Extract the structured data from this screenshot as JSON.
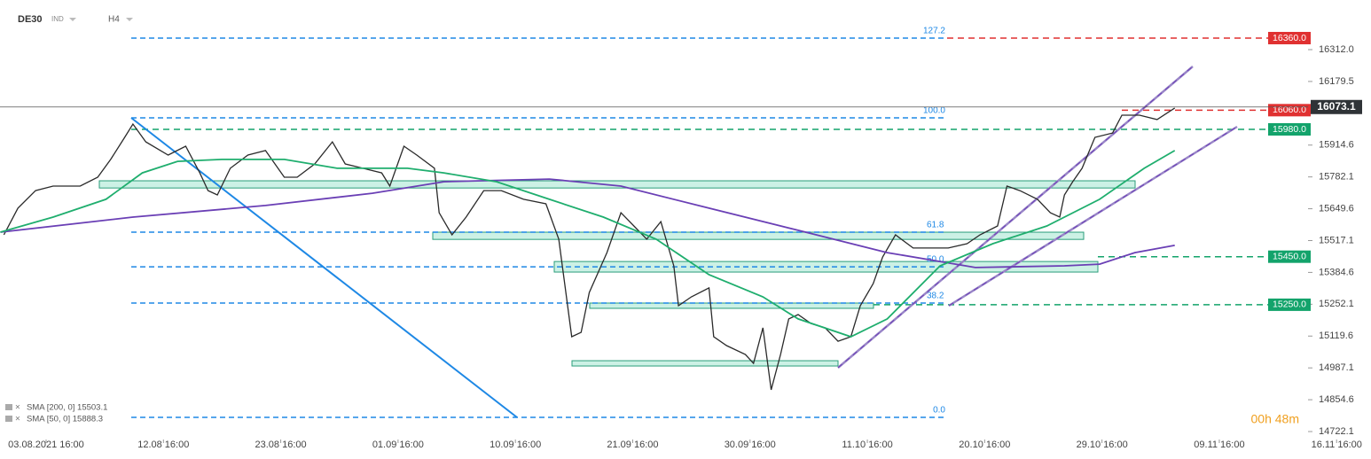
{
  "chart_data": {
    "type": "line",
    "instrument": "DE30",
    "market": "IND",
    "timeframe": "H4",
    "timer": "00h 48m",
    "xlim": [
      -0.393,
      11.293
    ],
    "xticks": [
      {
        "value": 0,
        "label": "03.08.2021 16:00"
      },
      {
        "value": 1,
        "label": "12.08 16:00"
      },
      {
        "value": 2,
        "label": "23.08 16:00"
      },
      {
        "value": 3,
        "label": "01.09 16:00"
      },
      {
        "value": 4,
        "label": "10.09 16:00"
      },
      {
        "value": 5,
        "label": "21.09 16:00"
      },
      {
        "value": 6,
        "label": "30.09 16:00"
      },
      {
        "value": 7,
        "label": "11.10 16:00"
      },
      {
        "value": 8,
        "label": "20.10 16:00"
      },
      {
        "value": 9,
        "label": "29.10 16:00"
      },
      {
        "value": 10,
        "label": "09.11 16:00"
      },
      {
        "value": 11,
        "label": "16.11 16:00"
      }
    ],
    "ylim": [
      14674.2,
      16518.6
    ],
    "yticks": [
      14722.1,
      14854.6,
      14987.1,
      15119.6,
      15252.1,
      15384.6,
      15517.1,
      15649.6,
      15782.1,
      15914.6,
      16179.5,
      {
        "value": 16312,
        "label": "16312.0"
      }
    ],
    "series": [
      {
        "color": "#2a2a2a",
        "x": [
          -0.36,
          -0.24,
          -0.09,
          0.06,
          0.29,
          0.44,
          0.55,
          0.67,
          0.74,
          0.85,
          1.04,
          1.19,
          1.31,
          1.38,
          1.46,
          1.57,
          1.72,
          1.87,
          2.03,
          2.14,
          2.29,
          2.44,
          2.55,
          2.7,
          2.86,
          2.93,
          3.05,
          3.16,
          3.31,
          3.35,
          3.46,
          3.58,
          3.73,
          3.88,
          4.07,
          4.26,
          4.37,
          4.48,
          4.56,
          4.63,
          4.78,
          4.9,
          5.01,
          5.12,
          5.24,
          5.35,
          5.39,
          5.5,
          5.65,
          5.69,
          5.8,
          5.96,
          6.03,
          6.11,
          6.18,
          6.26,
          6.33,
          6.41,
          6.52,
          6.64,
          6.75,
          6.86,
          6.94,
          7.05,
          7.13,
          7.24,
          7.39,
          7.54,
          7.69,
          7.85,
          7.96,
          8.11,
          8.19,
          8.3,
          8.45,
          8.56,
          8.64,
          8.68,
          8.75,
          8.83,
          8.94,
          9.09,
          9.17,
          9.32,
          9.47,
          9.62
        ],
        "values": [
          15541,
          15652,
          15725,
          15744,
          15744,
          15781,
          15855,
          15947,
          16002,
          15928,
          15873,
          15910,
          15799,
          15725,
          15707,
          15818,
          15873,
          15892,
          15781,
          15781,
          15836,
          15928,
          15836,
          15818,
          15799,
          15744,
          15910,
          15873,
          15818,
          15633,
          15541,
          15615,
          15725,
          15725,
          15689,
          15670,
          15523,
          15117,
          15135,
          15301,
          15467,
          15633,
          15578,
          15523,
          15596,
          15412,
          15246,
          15283,
          15320,
          15117,
          15080,
          15043,
          15006,
          15154,
          14896,
          15043,
          15191,
          15209,
          15172,
          15154,
          15098,
          15117,
          15246,
          15338,
          15449,
          15541,
          15486,
          15486,
          15486,
          15504,
          15541,
          15578,
          15744,
          15725,
          15689,
          15633,
          15615,
          15707,
          15762,
          15818,
          15947,
          15965,
          16039,
          16039,
          16021,
          16069
        ]
      },
      {
        "name": "SMA [200, 0] 15503.1",
        "color": "#6a3fb5",
        "x": [
          -0.39,
          0.74,
          1.87,
          2.78,
          3.39,
          4.29,
          4.9,
          5.65,
          6.41,
          7.17,
          7.92,
          8.68,
          8.98,
          9.28,
          9.62
        ],
        "values": [
          15552,
          15615,
          15663,
          15714,
          15762,
          15773,
          15744,
          15652,
          15560,
          15467,
          15405,
          15412,
          15419,
          15467,
          15497
        ]
      },
      {
        "name": "SMA [50, 0] 15888.3",
        "color": "#1fae6e",
        "x": [
          -0.39,
          0.06,
          0.51,
          0.82,
          1.12,
          1.5,
          2.03,
          2.48,
          3.08,
          3.39,
          3.84,
          4.29,
          4.75,
          5.2,
          5.65,
          6.11,
          6.41,
          6.86,
          7.17,
          7.62,
          8.07,
          8.53,
          8.98,
          9.36,
          9.62
        ],
        "values": [
          15552,
          15615,
          15689,
          15799,
          15847,
          15855,
          15855,
          15818,
          15818,
          15799,
          15762,
          15689,
          15615,
          15523,
          15375,
          15283,
          15191,
          15117,
          15191,
          15412,
          15504,
          15578,
          15689,
          15818,
          15892
        ]
      }
    ],
    "levels": [
      {
        "value": 16360,
        "label": "16360.0",
        "color": "#e03131"
      },
      {
        "value": 16060,
        "label": "16060.0",
        "color": "#e03131"
      },
      {
        "value": 15980,
        "label": "15980.0",
        "color": "#13a36b"
      },
      {
        "value": 15450,
        "label": "15450.0",
        "color": "#13a36b"
      },
      {
        "value": 15250,
        "label": "15250.0",
        "color": "#13a36b"
      }
    ],
    "current": 16073.1,
    "fib": [
      {
        "label": "127.2",
        "value": 16360
      },
      {
        "label": "100.0",
        "value": 16028
      },
      {
        "label": "61.8",
        "value": 15552
      },
      {
        "label": "50.0",
        "value": 15408
      },
      {
        "label": "38.2",
        "value": 15257
      },
      {
        "label": "0.0",
        "value": 14781
      }
    ],
    "zones": [
      [
        15736,
        15766
      ],
      [
        15522,
        15552
      ],
      [
        15386,
        15430
      ],
      [
        15235,
        15257
      ],
      [
        14995,
        15017
      ]
    ]
  }
}
